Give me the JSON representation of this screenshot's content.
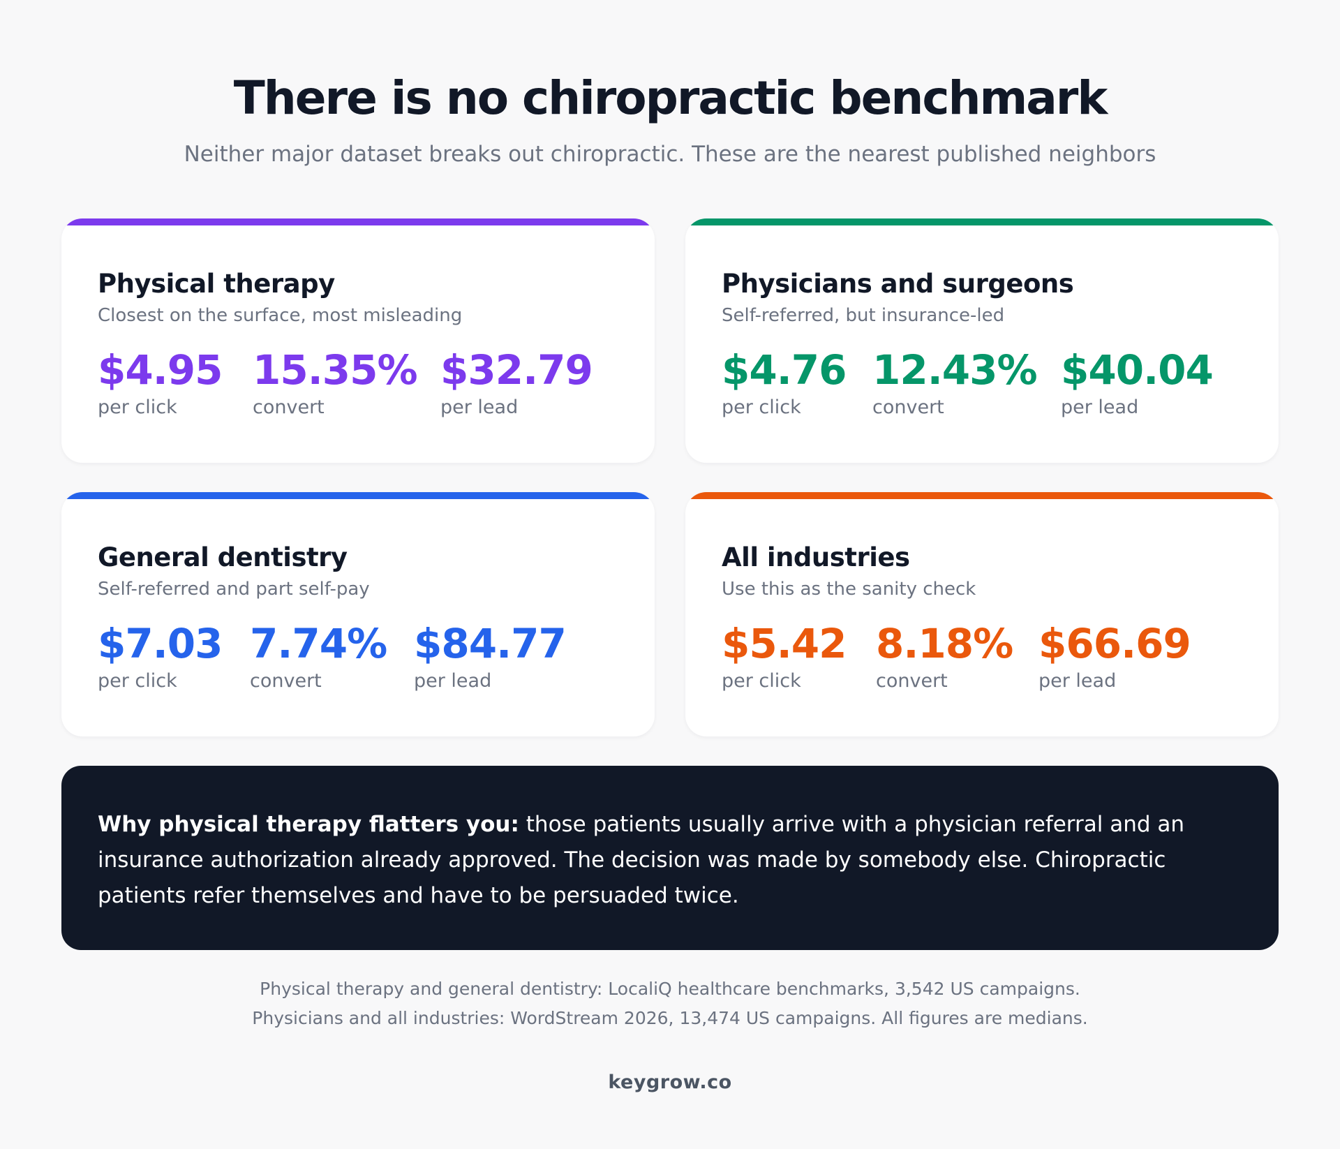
{
  "title": "There is no chiropractic benchmark",
  "subtitle": "Neither major dataset breaks out chiropractic. These are the nearest published neighbors",
  "cards": [
    {
      "title": "Physical therapy",
      "subtitle": "Closest on the surface, most misleading",
      "color": "#7c3aed",
      "stats": [
        {
          "value": "$4.95",
          "label": "per click"
        },
        {
          "value": "15.35%",
          "label": "convert"
        },
        {
          "value": "$32.79",
          "label": "per lead"
        }
      ]
    },
    {
      "title": "Physicians and surgeons",
      "subtitle": "Self-referred, but insurance-led",
      "color": "#059669",
      "stats": [
        {
          "value": "$4.76",
          "label": "per click"
        },
        {
          "value": "12.43%",
          "label": "convert"
        },
        {
          "value": "$40.04",
          "label": "per lead"
        }
      ]
    },
    {
      "title": "General dentistry",
      "subtitle": "Self-referred and part self-pay",
      "color": "#2563eb",
      "stats": [
        {
          "value": "$7.03",
          "label": "per click"
        },
        {
          "value": "7.74%",
          "label": "convert"
        },
        {
          "value": "$84.77",
          "label": "per lead"
        }
      ]
    },
    {
      "title": "All industries",
      "subtitle": "Use this as the sanity check",
      "color": "#ea580c",
      "stats": [
        {
          "value": "$5.42",
          "label": "per click"
        },
        {
          "value": "8.18%",
          "label": "convert"
        },
        {
          "value": "$66.69",
          "label": "per lead"
        }
      ]
    }
  ],
  "callout": {
    "lead": "Why physical therapy flatters you:",
    "body": " those patients usually arrive with a physician referral and an insurance authorization already approved. The decision was made by somebody else. Chiropractic patients refer themselves and have to be persuaded twice."
  },
  "footnotes": [
    "Physical therapy and general dentistry: LocaliQ healthcare benchmarks, 3,542 US campaigns.",
    "Physicians and all industries: WordStream 2026, 13,474 US campaigns. All figures are medians."
  ],
  "brand": "keygrow.co"
}
